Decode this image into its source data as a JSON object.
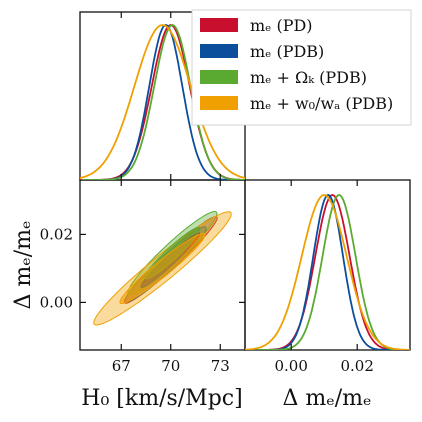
{
  "chart_data": {
    "type": "corner",
    "params": {
      "h0": {
        "label": "H₀ [km/s/Mpc]",
        "range": [
          64.5,
          74.5
        ],
        "ticks": [
          67,
          70,
          73
        ],
        "tick_labels": [
          "67",
          "70",
          "73"
        ]
      },
      "me": {
        "label": "Δ mₑ/mₑ",
        "range": [
          -0.014,
          0.036
        ],
        "ticks": [
          0.0,
          0.02
        ],
        "tick_labels": [
          "0.00",
          "0.02"
        ]
      }
    },
    "legend_position": "top-right",
    "series": [
      {
        "name": "mₑ (PD)",
        "color": "#c8102e",
        "h0": {
          "mean": 70.0,
          "sigma": 1.15
        },
        "me": {
          "mean": 0.0125,
          "sigma": 0.0052
        },
        "rho": 0.97
      },
      {
        "name": "mₑ (PDB)",
        "color": "#0b4f9c",
        "h0": {
          "mean": 69.7,
          "sigma": 1.0
        },
        "me": {
          "mean": 0.0112,
          "sigma": 0.0045
        },
        "rho": 0.96
      },
      {
        "name": "mₑ + Ωₖ (PDB)",
        "color": "#5aaa32",
        "h0": {
          "mean": 70.1,
          "sigma": 1.1
        },
        "me": {
          "mean": 0.0145,
          "sigma": 0.005
        },
        "rho": 0.95
      },
      {
        "name": "mₑ + w₀/wₐ (PDB)",
        "color": "#f0a000",
        "h0": {
          "mean": 69.5,
          "sigma": 1.7
        },
        "me": {
          "mean": 0.01,
          "sigma": 0.0068
        },
        "rho": 0.96
      }
    ]
  }
}
